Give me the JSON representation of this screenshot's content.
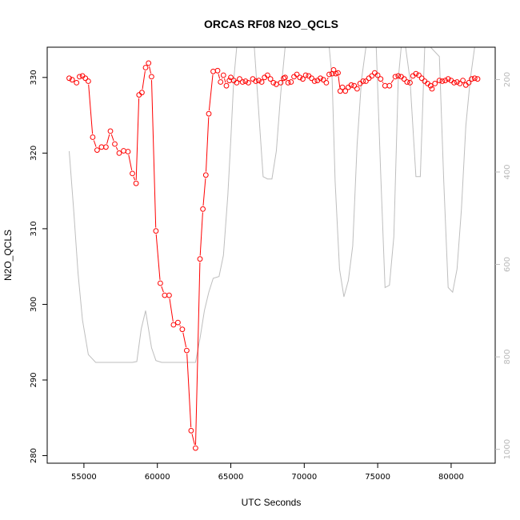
{
  "chart_data": {
    "type": "line",
    "title": "ORCAS RF08 N2O_QCLS",
    "xlabel": "UTC Seconds",
    "ylabel": "N2O_QCLS",
    "xlim": [
      52500,
      83000
    ],
    "ylim": [
      279,
      334
    ],
    "x_ticks": [
      55000,
      60000,
      65000,
      70000,
      75000,
      80000
    ],
    "y_ticks": [
      280,
      290,
      300,
      310,
      320,
      330
    ],
    "y2lim": [
      1030,
      130
    ],
    "y2_ticks": [
      200,
      400,
      600,
      800,
      1000
    ],
    "grid": false,
    "colors": {
      "primary": "#ff0000",
      "secondary": "#bebebe",
      "axis": "#000000"
    },
    "series": [
      {
        "role": "primary",
        "marker": "circle",
        "points": [
          [
            54000,
            329.9
          ],
          [
            54200,
            329.7
          ],
          [
            54500,
            329.3
          ],
          [
            54700,
            330.1
          ],
          [
            54900,
            330.2
          ],
          [
            55100,
            329.9
          ],
          [
            55300,
            329.5
          ],
          [
            55600,
            322.1
          ],
          [
            55900,
            320.4
          ],
          [
            56200,
            320.8
          ],
          [
            56500,
            320.8
          ],
          [
            56800,
            322.9
          ],
          [
            57100,
            321.2
          ],
          [
            57400,
            320.0
          ],
          [
            57700,
            320.3
          ],
          [
            58000,
            320.2
          ],
          [
            58300,
            317.3
          ],
          [
            58550,
            316.0
          ],
          [
            58750,
            327.7
          ],
          [
            58950,
            328.0
          ],
          [
            59200,
            331.3
          ],
          [
            59400,
            331.9
          ],
          [
            59600,
            330.1
          ],
          [
            59900,
            309.7
          ],
          [
            60200,
            302.8
          ],
          [
            60500,
            301.2
          ],
          [
            60800,
            301.2
          ],
          [
            61100,
            297.3
          ],
          [
            61400,
            297.6
          ],
          [
            61700,
            296.7
          ],
          [
            62000,
            293.9
          ],
          [
            62300,
            283.3
          ],
          [
            62600,
            281.0
          ],
          [
            62900,
            306.0
          ],
          [
            63100,
            312.6
          ],
          [
            63300,
            317.1
          ],
          [
            63500,
            325.2
          ],
          [
            63800,
            330.8
          ],
          [
            64100,
            330.9
          ],
          [
            64300,
            329.4
          ],
          [
            64500,
            330.3
          ],
          [
            64700,
            328.9
          ],
          [
            64900,
            329.6
          ],
          [
            65000,
            330.0
          ],
          [
            65200,
            329.6
          ],
          [
            65400,
            329.3
          ],
          [
            65600,
            329.8
          ],
          [
            65800,
            329.4
          ],
          [
            66000,
            329.5
          ],
          [
            66200,
            329.3
          ],
          [
            66500,
            329.8
          ],
          [
            66700,
            329.5
          ],
          [
            66900,
            329.6
          ],
          [
            67100,
            329.4
          ],
          [
            67300,
            330.0
          ],
          [
            67500,
            330.3
          ],
          [
            67700,
            329.8
          ],
          [
            67900,
            329.3
          ],
          [
            68100,
            329.1
          ],
          [
            68400,
            329.3
          ],
          [
            68600,
            329.9
          ],
          [
            68700,
            330.0
          ],
          [
            68900,
            329.3
          ],
          [
            69100,
            329.4
          ],
          [
            69300,
            330.1
          ],
          [
            69500,
            330.4
          ],
          [
            69700,
            330.0
          ],
          [
            69900,
            329.8
          ],
          [
            70100,
            330.3
          ],
          [
            70300,
            330.2
          ],
          [
            70500,
            329.9
          ],
          [
            70700,
            329.5
          ],
          [
            70900,
            329.6
          ],
          [
            71100,
            329.9
          ],
          [
            71300,
            329.7
          ],
          [
            71500,
            329.3
          ],
          [
            71700,
            330.4
          ],
          [
            71900,
            330.5
          ],
          [
            72000,
            331.0
          ],
          [
            72150,
            330.5
          ],
          [
            72300,
            330.6
          ],
          [
            72450,
            328.2
          ],
          [
            72600,
            328.7
          ],
          [
            72800,
            328.2
          ],
          [
            73000,
            328.7
          ],
          [
            73200,
            329.0
          ],
          [
            73400,
            328.9
          ],
          [
            73600,
            328.5
          ],
          [
            73800,
            329.2
          ],
          [
            74000,
            329.5
          ],
          [
            74200,
            329.5
          ],
          [
            74400,
            329.9
          ],
          [
            74600,
            330.2
          ],
          [
            74800,
            330.6
          ],
          [
            75000,
            330.3
          ],
          [
            75200,
            329.8
          ],
          [
            75500,
            328.9
          ],
          [
            75800,
            328.9
          ],
          [
            76200,
            330.1
          ],
          [
            76400,
            330.2
          ],
          [
            76600,
            330.1
          ],
          [
            76800,
            329.8
          ],
          [
            77000,
            329.4
          ],
          [
            77200,
            329.3
          ],
          [
            77400,
            330.2
          ],
          [
            77600,
            330.5
          ],
          [
            77800,
            330.3
          ],
          [
            78000,
            329.9
          ],
          [
            78200,
            329.5
          ],
          [
            78400,
            329.2
          ],
          [
            78600,
            328.9
          ],
          [
            78700,
            328.5
          ],
          [
            78900,
            329.2
          ],
          [
            79200,
            329.6
          ],
          [
            79400,
            329.5
          ],
          [
            79600,
            329.6
          ],
          [
            79800,
            329.8
          ],
          [
            80000,
            329.6
          ],
          [
            80200,
            329.3
          ],
          [
            80400,
            329.4
          ],
          [
            80600,
            329.2
          ],
          [
            80800,
            329.6
          ],
          [
            81000,
            329.0
          ],
          [
            81200,
            329.3
          ],
          [
            81400,
            329.8
          ],
          [
            81600,
            329.9
          ],
          [
            81800,
            329.8
          ]
        ]
      },
      {
        "role": "secondary",
        "marker": "none",
        "points": [
          [
            54000,
            355
          ],
          [
            54300,
            480
          ],
          [
            54600,
            620
          ],
          [
            54900,
            720
          ],
          [
            55300,
            795
          ],
          [
            55800,
            812
          ],
          [
            56500,
            812
          ],
          [
            57500,
            812
          ],
          [
            58300,
            812
          ],
          [
            58600,
            810
          ],
          [
            58900,
            740
          ],
          [
            59200,
            700
          ],
          [
            59600,
            780
          ],
          [
            59900,
            808
          ],
          [
            60300,
            812
          ],
          [
            61000,
            812
          ],
          [
            61800,
            812
          ],
          [
            62300,
            812
          ],
          [
            62600,
            812
          ],
          [
            62900,
            760
          ],
          [
            63200,
            700
          ],
          [
            63500,
            660
          ],
          [
            63800,
            630
          ],
          [
            64200,
            626
          ],
          [
            64500,
            580
          ],
          [
            64800,
            450
          ],
          [
            65000,
            330
          ],
          [
            65200,
            200
          ],
          [
            65400,
            130
          ],
          [
            65700,
            130
          ],
          [
            66000,
            130
          ],
          [
            66300,
            130
          ],
          [
            66600,
            130
          ],
          [
            66900,
            270
          ],
          [
            67200,
            410
          ],
          [
            67500,
            415
          ],
          [
            67800,
            415
          ],
          [
            68100,
            355
          ],
          [
            68400,
            230
          ],
          [
            68700,
            130
          ],
          [
            69300,
            130
          ],
          [
            70000,
            130
          ],
          [
            71000,
            130
          ],
          [
            71700,
            130
          ],
          [
            71900,
            200
          ],
          [
            72100,
            420
          ],
          [
            72400,
            610
          ],
          [
            72700,
            670
          ],
          [
            73000,
            635
          ],
          [
            73300,
            560
          ],
          [
            73600,
            340
          ],
          [
            73900,
            200
          ],
          [
            74200,
            130
          ],
          [
            74900,
            130
          ],
          [
            75200,
            400
          ],
          [
            75500,
            650
          ],
          [
            75800,
            645
          ],
          [
            76100,
            540
          ],
          [
            76400,
            200
          ],
          [
            76600,
            130
          ],
          [
            76900,
            130
          ],
          [
            77200,
            200
          ],
          [
            77600,
            410
          ],
          [
            77900,
            410
          ],
          [
            78200,
            130
          ],
          [
            78600,
            130
          ],
          [
            79200,
            150
          ],
          [
            79500,
            420
          ],
          [
            79800,
            650
          ],
          [
            80100,
            660
          ],
          [
            80400,
            610
          ],
          [
            80700,
            480
          ],
          [
            81000,
            300
          ],
          [
            81300,
            200
          ],
          [
            81600,
            130
          ]
        ]
      }
    ]
  }
}
